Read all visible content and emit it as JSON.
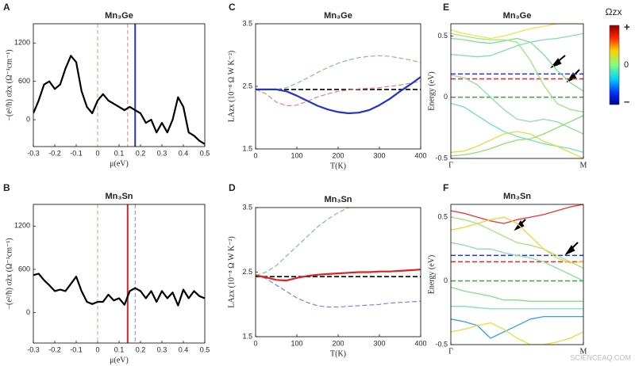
{
  "chart_data": [
    {
      "type": "line",
      "panel": "A",
      "title": "Mn₃Ge",
      "xlabel": "μ(eV)",
      "ylabel": "−(e²/ħ) σ̃zx (Ω⁻¹cm⁻¹)",
      "xlim": [
        -0.3,
        0.5
      ],
      "ylim": [
        -420,
        1500
      ],
      "xticks": [
        -0.3,
        -0.2,
        -0.1,
        0,
        0.1,
        0.2,
        0.3,
        0.4,
        0.5
      ],
      "yticks": [
        0,
        600,
        1200
      ],
      "x": [
        -0.3,
        -0.275,
        -0.25,
        -0.225,
        -0.2,
        -0.175,
        -0.15,
        -0.125,
        -0.1,
        -0.075,
        -0.05,
        -0.025,
        0,
        0.025,
        0.05,
        0.075,
        0.1,
        0.125,
        0.15,
        0.175,
        0.2,
        0.225,
        0.25,
        0.275,
        0.3,
        0.325,
        0.35,
        0.375,
        0.4,
        0.425,
        0.45,
        0.475,
        0.5
      ],
      "series": [
        {
          "color": "#000000",
          "dash": false,
          "width": 2.2,
          "values": [
            100,
            300,
            550,
            600,
            480,
            550,
            800,
            1000,
            900,
            450,
            200,
            100,
            300,
            400,
            300,
            250,
            200,
            150,
            200,
            150,
            100,
            -50,
            0,
            -200,
            -50,
            -200,
            0,
            350,
            200,
            -200,
            -250,
            -330,
            -380
          ]
        }
      ],
      "vlines": [
        {
          "x": 0,
          "color": "#7ec87e",
          "dash": true
        },
        {
          "x": 0.14,
          "color": "#e88080",
          "dash": true
        },
        {
          "x": 0.175,
          "color": "#2233cc",
          "dash": false
        }
      ]
    },
    {
      "type": "line",
      "panel": "B",
      "title": "Mn₃Sn",
      "xlabel": "μ(eV)",
      "ylabel": "−(e²/ħ) σ̃zx (Ω⁻¹cm⁻¹)",
      "xlim": [
        -0.3,
        0.5
      ],
      "ylim": [
        -420,
        1500
      ],
      "xticks": [
        -0.3,
        -0.2,
        -0.1,
        0,
        0.1,
        0.2,
        0.3,
        0.4,
        0.5
      ],
      "yticks": [
        0,
        600,
        1200
      ],
      "x": [
        -0.3,
        -0.275,
        -0.25,
        -0.225,
        -0.2,
        -0.175,
        -0.15,
        -0.125,
        -0.1,
        -0.075,
        -0.05,
        -0.025,
        0,
        0.025,
        0.05,
        0.075,
        0.1,
        0.125,
        0.15,
        0.175,
        0.2,
        0.225,
        0.25,
        0.275,
        0.3,
        0.325,
        0.35,
        0.375,
        0.4,
        0.425,
        0.45,
        0.475,
        0.5
      ],
      "series": [
        {
          "color": "#000000",
          "dash": false,
          "width": 2.2,
          "values": [
            520,
            540,
            450,
            380,
            300,
            320,
            300,
            400,
            500,
            300,
            150,
            120,
            150,
            150,
            250,
            170,
            200,
            110,
            300,
            340,
            300,
            200,
            300,
            150,
            300,
            200,
            280,
            100,
            320,
            200,
            300,
            230,
            200
          ]
        }
      ],
      "vlines": [
        {
          "x": 0,
          "color": "#7ec87e",
          "dash": true
        },
        {
          "x": 0.14,
          "color": "#dd2222",
          "dash": false
        },
        {
          "x": 0.175,
          "color": "#8080e0",
          "dash": true
        }
      ]
    },
    {
      "type": "line",
      "panel": "C",
      "title": "Mn₃Ge",
      "xlabel": "T(K)",
      "ylabel": "LAzx (10⁻⁸ Ω W K⁻²)",
      "xlim": [
        0,
        400
      ],
      "ylim": [
        1.5,
        3.5
      ],
      "xticks": [
        0,
        100,
        200,
        300,
        400
      ],
      "yticks": [
        1.5,
        2.5,
        3.5
      ],
      "x": [
        0,
        25,
        50,
        75,
        100,
        125,
        150,
        175,
        200,
        225,
        250,
        275,
        300,
        325,
        350,
        375,
        400
      ],
      "series": [
        {
          "color": "#7ec87e",
          "dash": true,
          "width": 1.2,
          "values": [
            2.45,
            2.45,
            2.45,
            2.48,
            2.55,
            2.63,
            2.72,
            2.8,
            2.87,
            2.92,
            2.96,
            2.98,
            2.99,
            2.98,
            2.95,
            2.92,
            2.88
          ]
        },
        {
          "color": "#e88080",
          "dash": true,
          "width": 1.2,
          "values": [
            2.45,
            2.38,
            2.25,
            2.19,
            2.2,
            2.26,
            2.33,
            2.38,
            2.42,
            2.44,
            2.46,
            2.47,
            2.48,
            2.5,
            2.52,
            2.55,
            2.58
          ]
        },
        {
          "color": "#2233cc",
          "dash": false,
          "width": 2.2,
          "values": [
            2.45,
            2.45,
            2.45,
            2.42,
            2.35,
            2.27,
            2.19,
            2.13,
            2.09,
            2.07,
            2.08,
            2.12,
            2.2,
            2.3,
            2.42,
            2.53,
            2.65
          ]
        }
      ],
      "hlines": [
        {
          "y": 2.45,
          "color": "#000000",
          "dash": true
        }
      ]
    },
    {
      "type": "line",
      "panel": "D",
      "title": "Mn₃Sn",
      "xlabel": "T(K)",
      "ylabel": "LAzx (10⁻⁸ Ω W K⁻²)",
      "xlim": [
        0,
        400
      ],
      "ylim": [
        1.5,
        3.5
      ],
      "xticks": [
        0,
        100,
        200,
        300,
        400
      ],
      "yticks": [
        1.5,
        2.5,
        3.5
      ],
      "x": [
        0,
        25,
        50,
        75,
        100,
        125,
        150,
        175,
        200,
        225,
        250,
        275,
        300,
        325,
        350,
        375,
        400
      ],
      "series": [
        {
          "color": "#7ec87e",
          "dash": true,
          "width": 1.2,
          "values": [
            2.45,
            2.5,
            2.6,
            2.75,
            2.9,
            3.05,
            3.2,
            3.32,
            3.42,
            3.5,
            3.52,
            3.55,
            3.55,
            3.55,
            3.55,
            3.53,
            3.5
          ]
        },
        {
          "color": "#8080e0",
          "dash": true,
          "width": 1.2,
          "values": [
            2.45,
            2.4,
            2.3,
            2.2,
            2.1,
            2.03,
            1.98,
            1.96,
            1.96,
            1.97,
            1.98,
            1.99,
            2.0,
            2.02,
            2.03,
            2.04,
            2.05
          ]
        },
        {
          "color": "#dd2222",
          "dash": false,
          "width": 2.2,
          "values": [
            2.45,
            2.42,
            2.38,
            2.37,
            2.41,
            2.44,
            2.46,
            2.47,
            2.48,
            2.49,
            2.5,
            2.5,
            2.51,
            2.51,
            2.52,
            2.53,
            2.54
          ]
        }
      ],
      "hlines": [
        {
          "y": 2.43,
          "color": "#000000",
          "dash": true
        }
      ]
    },
    {
      "type": "line",
      "panel": "E",
      "title": "Mn₃Ge",
      "ylabel": "Energy (eV)",
      "xlim": [
        0,
        1
      ],
      "ylim": [
        -0.5,
        0.6
      ],
      "xticks": [
        {
          "value": 0,
          "label": "Γ"
        },
        {
          "value": 1,
          "label": "M"
        }
      ],
      "yticks": [
        -0.5,
        0,
        0.5
      ],
      "x": [
        0,
        0.1,
        0.2,
        0.3,
        0.4,
        0.5,
        0.6,
        0.7,
        0.8,
        0.9,
        1
      ],
      "series": [
        {
          "color": "#f5e050",
          "dash": false,
          "width": 1.3,
          "values": [
            0.55,
            0.52,
            0.5,
            0.48,
            0.5,
            0.53,
            0.56,
            0.58,
            0.6,
            0.6,
            0.6
          ]
        },
        {
          "color": "#7ee08a",
          "dash": false,
          "width": 1.3,
          "values": [
            0.48,
            0.47,
            0.45,
            0.44,
            0.46,
            0.48,
            0.45,
            0.35,
            0.22,
            0.12,
            0.05
          ]
        },
        {
          "color": "#9ee87a",
          "dash": false,
          "width": 1.3,
          "values": [
            0.52,
            0.5,
            0.48,
            0.47,
            0.47,
            0.45,
            0.3,
            0.1,
            -0.05,
            -0.1,
            -0.12
          ]
        },
        {
          "color": "#7ee0b0",
          "dash": false,
          "width": 1.3,
          "values": [
            0.35,
            0.34,
            0.33,
            0.34,
            0.38,
            0.42,
            0.45,
            0.47,
            0.48,
            0.5,
            0.52
          ]
        },
        {
          "color": "#8ae0a0",
          "dash": false,
          "width": 1.3,
          "values": [
            0.18,
            0.16,
            0.1,
            0.0,
            -0.1,
            -0.18,
            -0.2,
            -0.18,
            -0.2,
            -0.25,
            -0.3
          ]
        },
        {
          "color": "#6ee0c0",
          "dash": false,
          "width": 1.3,
          "values": [
            -0.05,
            -0.08,
            -0.15,
            -0.22,
            -0.28,
            -0.32,
            -0.35,
            -0.38,
            -0.4,
            -0.42,
            -0.45
          ]
        },
        {
          "color": "#d8e040",
          "dash": false,
          "width": 1.3,
          "values": [
            -0.45,
            -0.44,
            -0.4,
            -0.35,
            -0.3,
            -0.28,
            -0.3,
            -0.36,
            -0.4,
            -0.45,
            -0.5
          ]
        },
        {
          "color": "#90e070",
          "dash": false,
          "width": 1.3,
          "values": [
            -0.48,
            -0.47,
            -0.45,
            -0.42,
            -0.38,
            -0.35,
            -0.34,
            -0.3,
            -0.25,
            -0.2,
            -0.15
          ]
        }
      ],
      "hlines": [
        {
          "y": 0.19,
          "color": "#2233dd",
          "dash": true
        },
        {
          "y": 0.15,
          "color": "#dd3333",
          "dash": true
        },
        {
          "y": 0,
          "color": "#44aa44",
          "dash": true
        }
      ]
    },
    {
      "type": "line",
      "panel": "F",
      "title": "Mn₃Sn",
      "ylabel": "Energy (eV)",
      "xlim": [
        0,
        1
      ],
      "ylim": [
        -0.5,
        0.6
      ],
      "xticks": [
        {
          "value": 0,
          "label": "Γ"
        },
        {
          "value": 1,
          "label": "M"
        }
      ],
      "yticks": [
        -0.5,
        0,
        0.5
      ],
      "x": [
        0,
        0.1,
        0.2,
        0.3,
        0.4,
        0.5,
        0.6,
        0.7,
        0.8,
        0.9,
        1
      ],
      "series": [
        {
          "color": "#f03030",
          "dash": false,
          "width": 1.3,
          "values": [
            0.55,
            0.53,
            0.5,
            0.47,
            0.45,
            0.48,
            0.5,
            0.52,
            0.55,
            0.58,
            0.6
          ]
        },
        {
          "color": "#9ee87a",
          "dash": false,
          "width": 1.3,
          "values": [
            0.5,
            0.48,
            0.45,
            0.4,
            0.35,
            0.3,
            0.28,
            0.25,
            0.2,
            0.15,
            0.1
          ]
        },
        {
          "color": "#f5d040",
          "dash": false,
          "width": 1.3,
          "values": [
            0.4,
            0.42,
            0.45,
            0.48,
            0.5,
            0.45,
            0.35,
            0.25,
            0.18,
            0.14,
            0.15
          ]
        },
        {
          "color": "#8ae0a0",
          "dash": false,
          "width": 1.3,
          "values": [
            0.3,
            0.28,
            0.25,
            0.25,
            0.22,
            0.2,
            0.18,
            0.15,
            0.1,
            0.05,
            0.0
          ]
        },
        {
          "color": "#7ee08a",
          "dash": false,
          "width": 1.3,
          "values": [
            -0.05,
            -0.08,
            -0.1,
            -0.12,
            -0.15,
            -0.15,
            -0.16,
            -0.16,
            -0.16,
            -0.16,
            -0.16
          ]
        },
        {
          "color": "#7ee0c0",
          "dash": false,
          "width": 1.3,
          "values": [
            -0.2,
            -0.2,
            -0.21,
            -0.22,
            -0.22,
            -0.22,
            -0.22,
            -0.22,
            -0.22,
            -0.22,
            -0.22
          ]
        },
        {
          "color": "#30a0f0",
          "dash": false,
          "width": 1.3,
          "values": [
            -0.3,
            -0.32,
            -0.35,
            -0.45,
            -0.4,
            -0.35,
            -0.3,
            -0.28,
            -0.28,
            -0.28,
            -0.28
          ]
        },
        {
          "color": "#e0e040",
          "dash": false,
          "width": 1.3,
          "values": [
            -0.4,
            -0.38,
            -0.35,
            -0.33,
            -0.38,
            -0.45,
            -0.5,
            -0.5,
            -0.48,
            -0.45,
            -0.4
          ]
        }
      ],
      "hlines": [
        {
          "y": 0.2,
          "color": "#2233dd",
          "dash": true
        },
        {
          "y": 0.15,
          "color": "#dd3333",
          "dash": true
        },
        {
          "y": 0,
          "color": "#44aa44",
          "dash": true
        }
      ]
    }
  ],
  "colorbar": {
    "title": "Ωzx",
    "labels": [
      "+",
      "0",
      "–"
    ]
  },
  "watermark": "SCIENCEAQ.COM"
}
